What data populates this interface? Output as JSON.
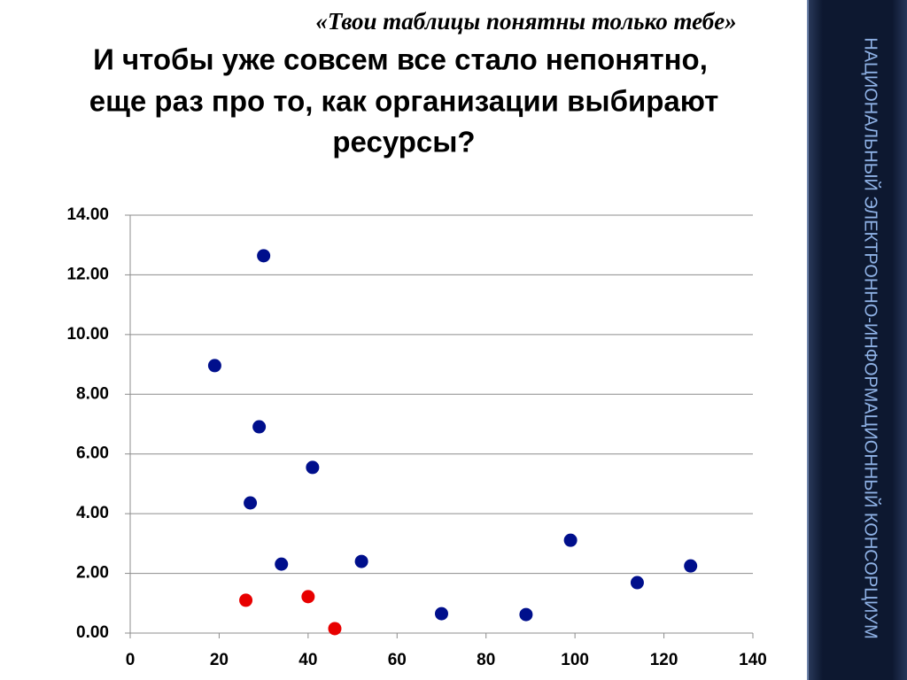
{
  "subtitle": "«Твои таблицы понятны только тебе»",
  "title_lines": [
    "И чтобы уже совсем все стало непонятно,",
    "еще раз  про то, как организации выбирают",
    "ресурсы?"
  ],
  "side_text": "НАЦИОНАЛЬНЫЙ ЭЛЕКТРОННО-ИНФОРМАЦИОННЫЙ КОНСОРЦИУМ",
  "chart_data": {
    "type": "scatter",
    "series": [
      {
        "color": "#000f8c",
        "x": [
          19,
          30,
          29,
          41,
          27,
          34,
          52,
          70,
          89,
          99,
          114,
          126
        ],
        "values": [
          8.96,
          12.64,
          6.91,
          5.55,
          4.36,
          2.31,
          2.4,
          0.65,
          0.62,
          3.11,
          1.69,
          2.25
        ]
      },
      {
        "color": "#e80000",
        "x": [
          26,
          40,
          46
        ],
        "values": [
          1.1,
          1.22,
          0.15
        ]
      }
    ],
    "xlim": [
      0,
      140
    ],
    "xticks": [
      0,
      20,
      40,
      60,
      80,
      100,
      120,
      140
    ],
    "ylim": [
      0,
      14
    ],
    "yticks": [
      {
        "value": 0,
        "label": "0.00"
      },
      {
        "value": 2,
        "label": "2.00"
      },
      {
        "value": 4,
        "label": "4.00"
      },
      {
        "value": 6,
        "label": "6.00"
      },
      {
        "value": 8,
        "label": "8.00"
      },
      {
        "value": 10,
        "label": "10.00"
      },
      {
        "value": 12,
        "label": "12.00"
      },
      {
        "value": 14,
        "label": "14.00"
      }
    ],
    "grid": true
  }
}
